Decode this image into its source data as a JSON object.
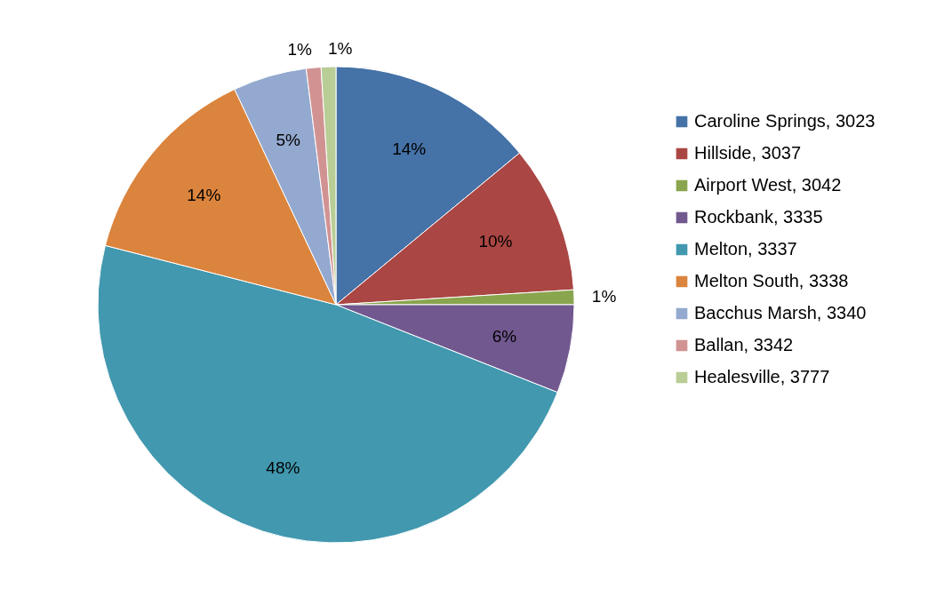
{
  "chart_data": {
    "type": "pie",
    "categories": [
      "Caroline Springs, 3023",
      "Hillside, 3037",
      "Airport West, 3042",
      "Rockbank, 3335",
      "Melton, 3337",
      "Melton South, 3338",
      "Bacchus Marsh, 3340",
      "Ballan, 3342",
      "Healesville, 3777"
    ],
    "values": [
      14,
      10,
      1,
      6,
      48,
      14,
      5,
      1,
      1
    ],
    "value_labels": [
      "14%",
      "10%",
      "1%",
      "6%",
      "48%",
      "14%",
      "5%",
      "1%",
      "1%"
    ],
    "colors": [
      "#4572a7",
      "#aa4643",
      "#89a54e",
      "#71588f",
      "#4198af",
      "#db843d",
      "#93a9cf",
      "#d19392",
      "#b9cd96"
    ],
    "legend": "right"
  }
}
